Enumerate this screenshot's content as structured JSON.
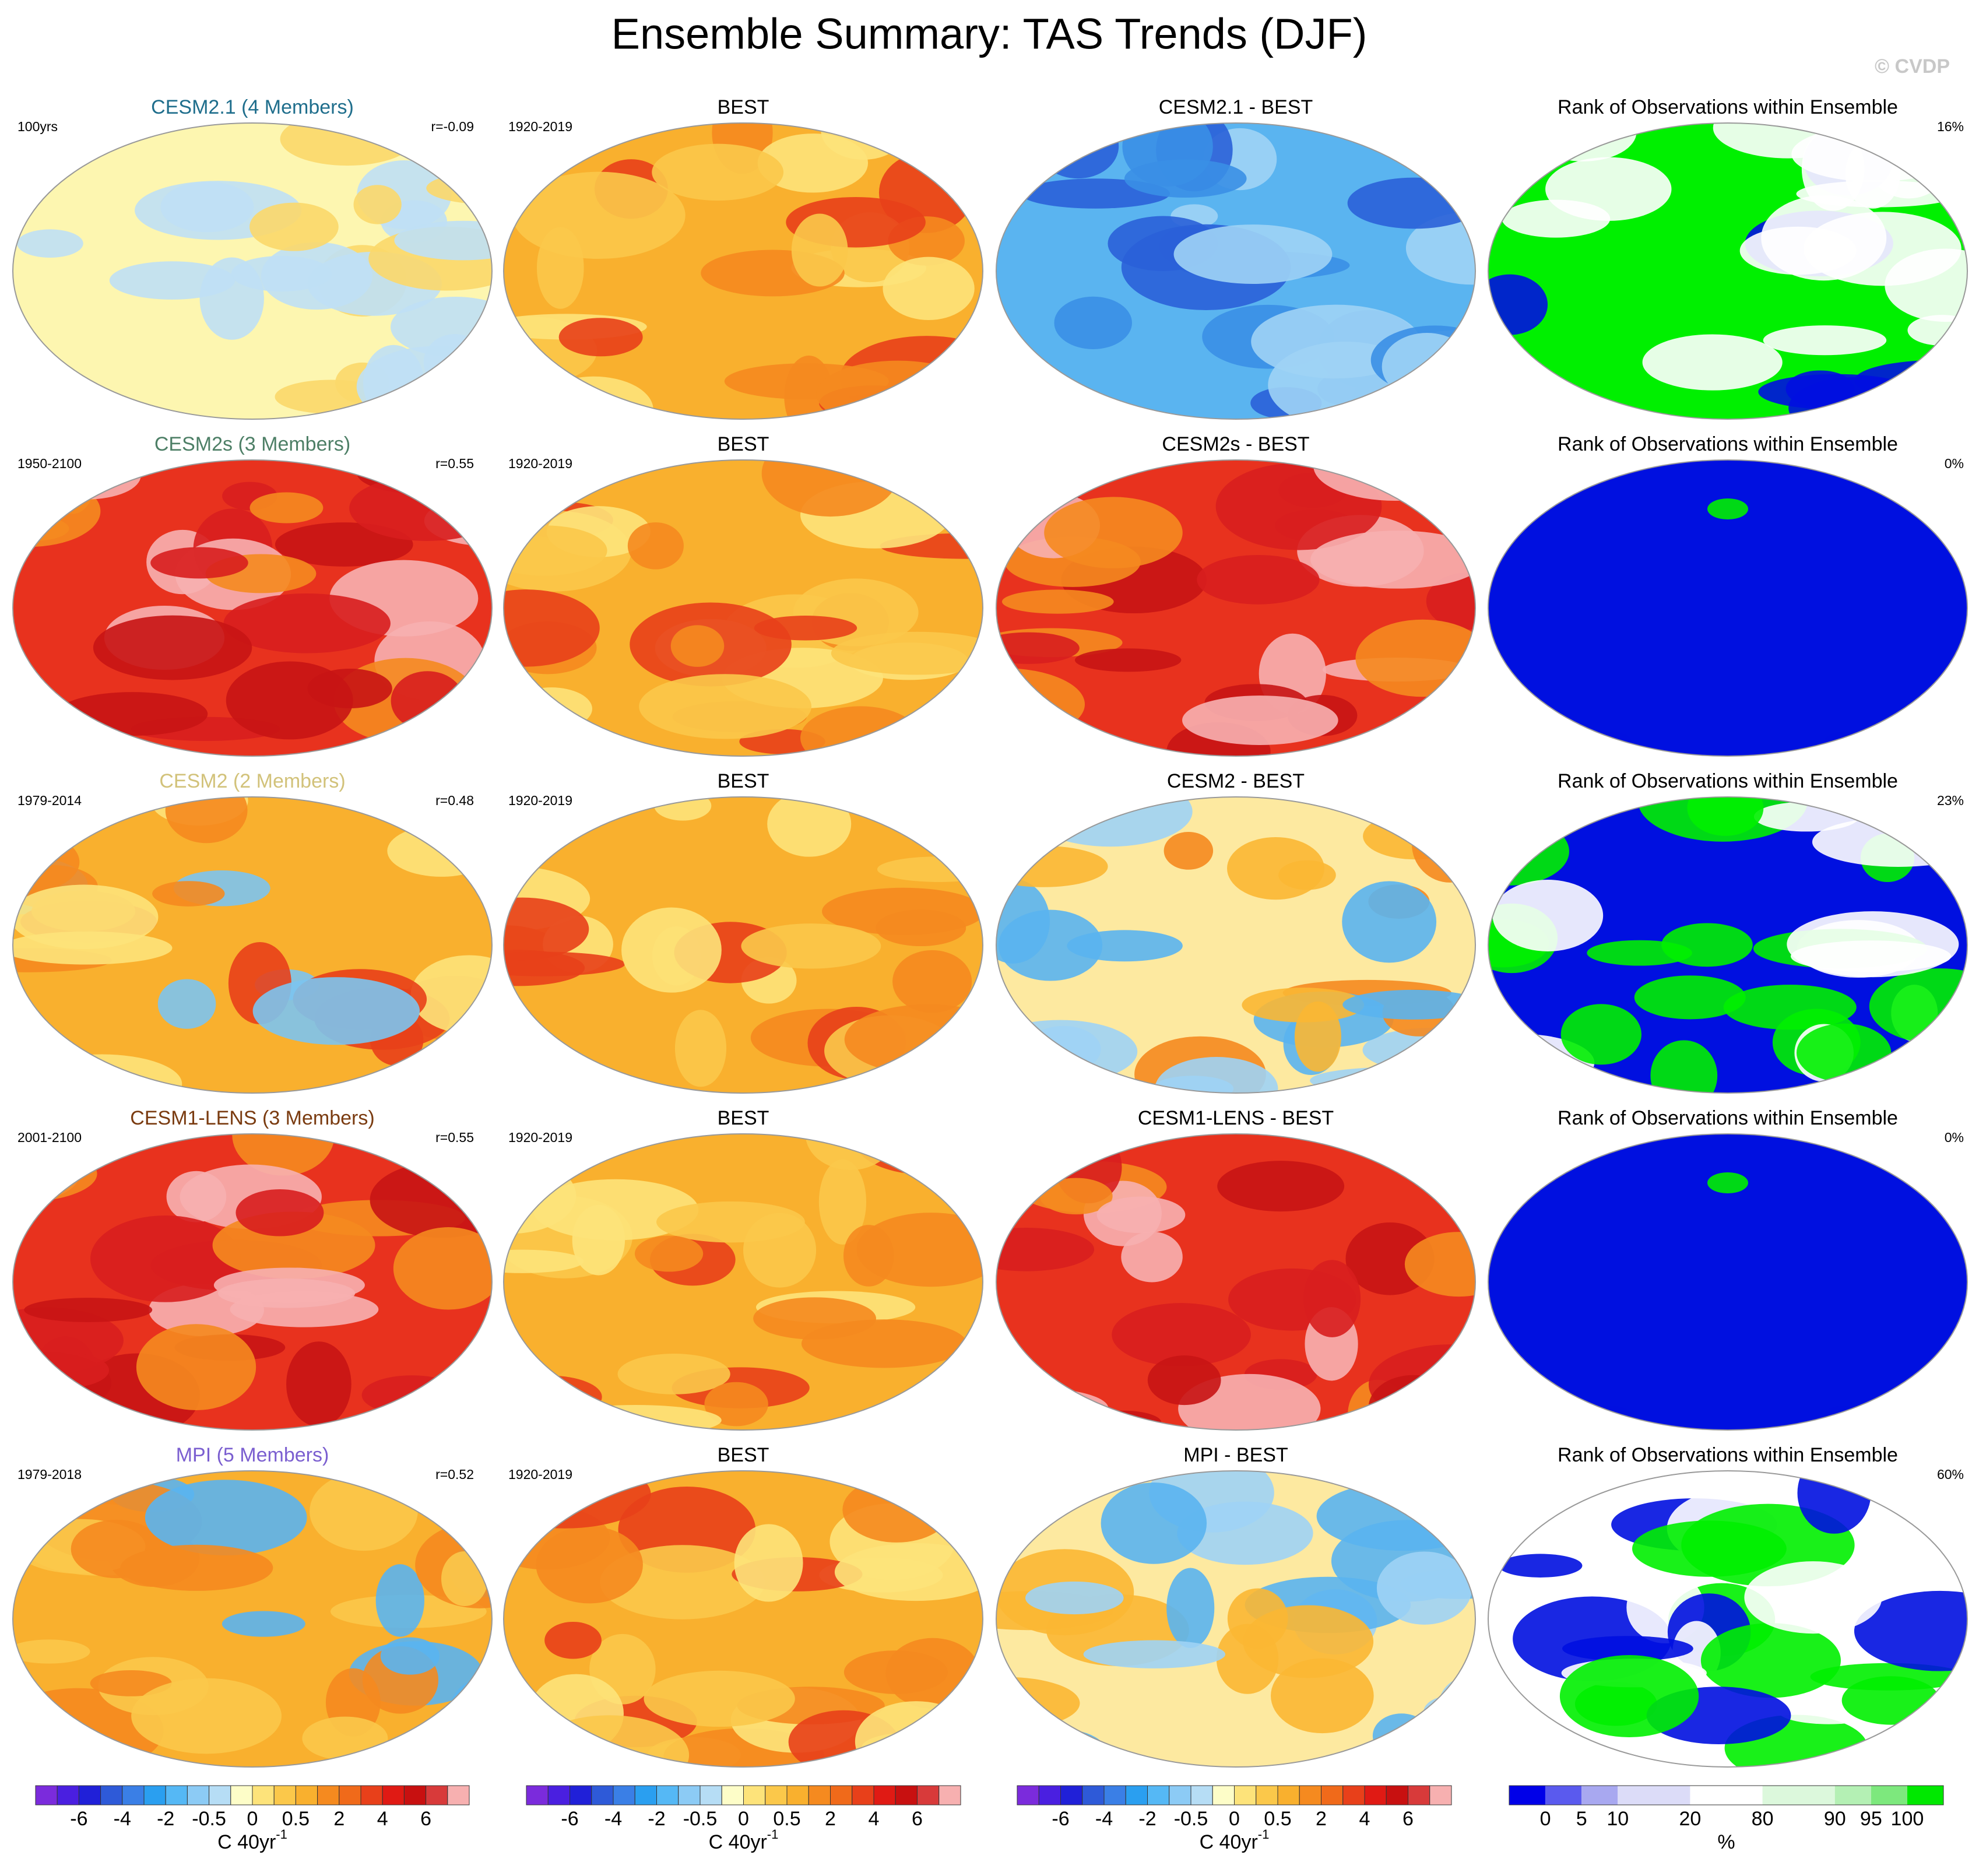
{
  "title": "Ensemble Summary: TAS Trends (DJF)",
  "watermark": "© CVDP",
  "rows": [
    {
      "panels": [
        {
          "title": "CESM2.1 (4 Members)",
          "title_color": "#1f6e8c",
          "left": "100yrs",
          "right": "r=-0.09"
        },
        {
          "title": "BEST",
          "left": "1920-2019"
        },
        {
          "title": "CESM2.1 - BEST"
        },
        {
          "title": "Rank of Observations within Ensemble",
          "right": "16%"
        }
      ]
    },
    {
      "panels": [
        {
          "title": "CESM2s (3 Members)",
          "title_color": "#4d7f66",
          "left": "1950-2100",
          "right": "r=0.55"
        },
        {
          "title": "BEST",
          "left": "1920-2019"
        },
        {
          "title": "CESM2s - BEST"
        },
        {
          "title": "Rank of Observations within Ensemble",
          "right": "0%"
        }
      ]
    },
    {
      "panels": [
        {
          "title": "CESM2 (2 Members)",
          "title_color": "#d2c27a",
          "left": "1979-2014",
          "right": "r=0.48"
        },
        {
          "title": "BEST",
          "left": "1920-2019"
        },
        {
          "title": "CESM2 - BEST"
        },
        {
          "title": "Rank of Observations within Ensemble",
          "right": "23%"
        }
      ]
    },
    {
      "panels": [
        {
          "title": "CESM1-LENS (3 Members)",
          "title_color": "#7a3b10",
          "left": "2001-2100",
          "right": "r=0.55"
        },
        {
          "title": "BEST",
          "left": "1920-2019"
        },
        {
          "title": "CESM1-LENS - BEST"
        },
        {
          "title": "Rank of Observations within Ensemble",
          "right": "0%"
        }
      ]
    },
    {
      "panels": [
        {
          "title": "MPI (5 Members)",
          "title_color": "#7b5fd0",
          "left": "1979-2018",
          "right": "r=0.52"
        },
        {
          "title": "BEST",
          "left": "1920-2019"
        },
        {
          "title": "MPI - BEST"
        },
        {
          "title": "Rank of Observations within Ensemble",
          "right": "60%"
        }
      ]
    }
  ],
  "colorbars": [
    {
      "labels": [
        "-6",
        "-4",
        "-2",
        "-0.5",
        "0",
        "0.5",
        "2",
        "4",
        "6"
      ],
      "units": "C 40yr",
      "units_sup": "-1",
      "colors": [
        "#7b2bdc",
        "#4a1fe0",
        "#2020d8",
        "#2e5ad8",
        "#3a7fe6",
        "#2a9ff0",
        "#55b8f5",
        "#8ccbf5",
        "#b6ddf5",
        "#fdfdc8",
        "#fde37a",
        "#fbc84a",
        "#f9b02e",
        "#f58a1f",
        "#f06a1a",
        "#e8401a",
        "#e01a14",
        "#c81010",
        "#d83a3a",
        "#f7b0b0"
      ]
    },
    {
      "labels": [
        "-6",
        "-4",
        "-2",
        "-0.5",
        "0",
        "0.5",
        "2",
        "4",
        "6"
      ],
      "units": "C 40yr",
      "units_sup": "-1",
      "colors": [
        "#7b2bdc",
        "#4a1fe0",
        "#2020d8",
        "#2e5ad8",
        "#3a7fe6",
        "#2a9ff0",
        "#55b8f5",
        "#8ccbf5",
        "#b6ddf5",
        "#fdfdc8",
        "#fde37a",
        "#fbc84a",
        "#f9b02e",
        "#f58a1f",
        "#f06a1a",
        "#e8401a",
        "#e01a14",
        "#c81010",
        "#d83a3a",
        "#f7b0b0"
      ]
    },
    {
      "labels": [
        "-6",
        "-4",
        "-2",
        "-0.5",
        "0",
        "0.5",
        "2",
        "4",
        "6"
      ],
      "units": "C 40yr",
      "units_sup": "-1",
      "colors": [
        "#7b2bdc",
        "#4a1fe0",
        "#2020d8",
        "#2e5ad8",
        "#3a7fe6",
        "#2a9ff0",
        "#55b8f5",
        "#8ccbf5",
        "#b6ddf5",
        "#fdfdc8",
        "#fde37a",
        "#fbc84a",
        "#f9b02e",
        "#f58a1f",
        "#f06a1a",
        "#e8401a",
        "#e01a14",
        "#c81010",
        "#d83a3a",
        "#f7b0b0"
      ]
    },
    {
      "labels": [
        "0",
        "5",
        "10",
        "20",
        "80",
        "90",
        "95",
        "100"
      ],
      "units": "%",
      "colors": [
        "#0000e8",
        "#5a5aee",
        "#a8a8f0",
        "#dcdcf8",
        "#ffffff",
        "#dcf8dc",
        "#b4f0b4",
        "#7de87d",
        "#00e800"
      ]
    }
  ]
}
